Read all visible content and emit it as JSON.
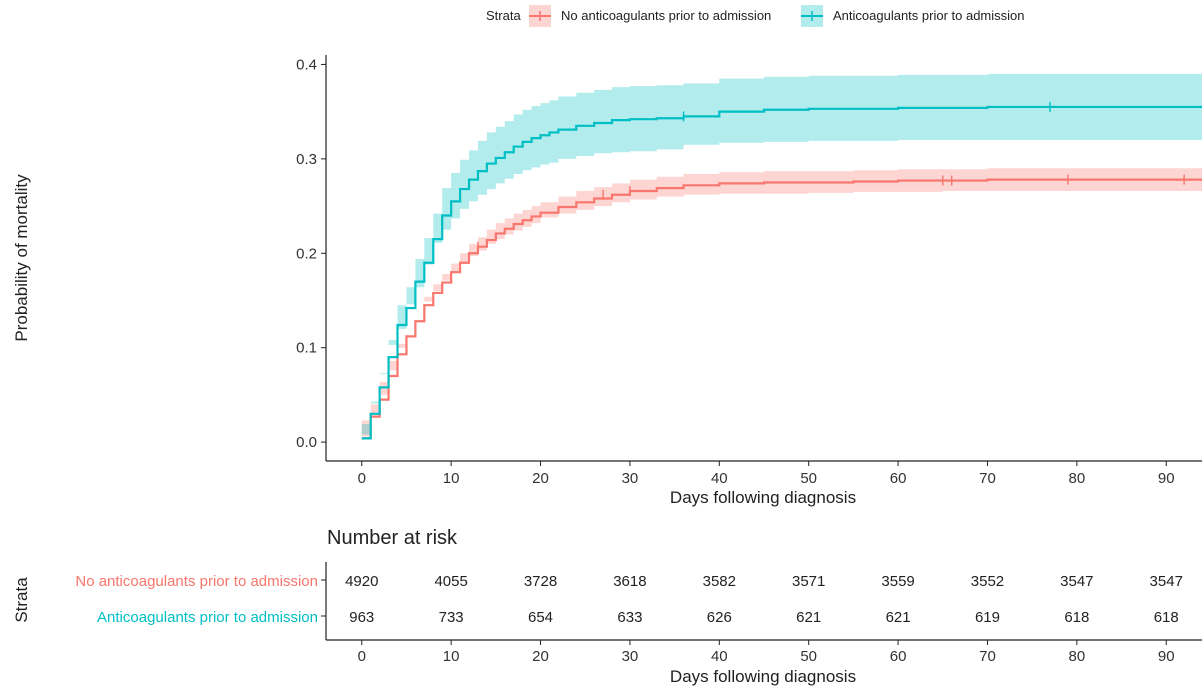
{
  "legend": {
    "title": "Strata",
    "items": [
      {
        "label": "No anticoagulants prior to admission",
        "color": "#F8766D"
      },
      {
        "label": "Anticoagulants prior to admission",
        "color": "#00BFC4"
      }
    ]
  },
  "chart_data": {
    "type": "line",
    "subtype": "step",
    "title": "",
    "xlabel": "Days following diagnosis",
    "ylabel": "Probability of mortality",
    "xlim": [
      -4,
      94
    ],
    "ylim": [
      -0.02,
      0.41
    ],
    "x_ticks": [
      0,
      10,
      20,
      30,
      40,
      50,
      60,
      70,
      80,
      90
    ],
    "y_ticks": [
      0.0,
      0.1,
      0.2,
      0.3,
      0.4
    ],
    "y_tick_labels": [
      "0.0",
      "0.1",
      "0.2",
      "0.3",
      "0.4"
    ],
    "grid": false,
    "legend_position": "top",
    "series": [
      {
        "name": "No anticoagulants prior to admission",
        "color": "#F8766D",
        "x": [
          0,
          1,
          2,
          3,
          4,
          5,
          6,
          7,
          8,
          9,
          10,
          11,
          12,
          13,
          14,
          15,
          16,
          17,
          18,
          19,
          20,
          22,
          24,
          26,
          28,
          30,
          33,
          36,
          40,
          45,
          50,
          55,
          60,
          65,
          70,
          80,
          94
        ],
        "y": [
          0.004,
          0.027,
          0.045,
          0.07,
          0.093,
          0.112,
          0.128,
          0.145,
          0.158,
          0.169,
          0.18,
          0.19,
          0.2,
          0.207,
          0.214,
          0.221,
          0.226,
          0.231,
          0.235,
          0.239,
          0.243,
          0.249,
          0.254,
          0.258,
          0.262,
          0.266,
          0.269,
          0.272,
          0.274,
          0.275,
          0.275,
          0.276,
          0.277,
          0.277,
          0.278,
          0.278,
          0.278
        ],
        "lower": [
          0.002,
          0.023,
          0.04,
          0.064,
          0.086,
          0.104,
          0.12,
          0.136,
          0.149,
          0.16,
          0.171,
          0.18,
          0.19,
          0.197,
          0.203,
          0.21,
          0.215,
          0.22,
          0.224,
          0.228,
          0.232,
          0.238,
          0.242,
          0.246,
          0.25,
          0.254,
          0.257,
          0.26,
          0.262,
          0.263,
          0.263,
          0.264,
          0.265,
          0.265,
          0.266,
          0.266,
          0.266
        ],
        "upper": [
          0.006,
          0.031,
          0.05,
          0.076,
          0.1,
          0.12,
          0.136,
          0.154,
          0.167,
          0.178,
          0.189,
          0.2,
          0.21,
          0.217,
          0.225,
          0.232,
          0.237,
          0.242,
          0.246,
          0.25,
          0.254,
          0.26,
          0.266,
          0.27,
          0.274,
          0.278,
          0.281,
          0.284,
          0.286,
          0.287,
          0.287,
          0.288,
          0.289,
          0.289,
          0.29,
          0.29,
          0.29
        ],
        "censor_x": [
          13,
          27,
          30,
          65,
          66,
          79,
          92
        ],
        "censor_y": [
          0.207,
          0.262,
          0.266,
          0.277,
          0.277,
          0.278,
          0.278
        ]
      },
      {
        "name": "Anticoagulants prior to admission",
        "color": "#00BFC4",
        "x": [
          0,
          1,
          2,
          3,
          4,
          5,
          6,
          7,
          8,
          9,
          10,
          11,
          12,
          13,
          14,
          15,
          16,
          17,
          18,
          19,
          20,
          21,
          22,
          24,
          26,
          28,
          30,
          33,
          36,
          40,
          45,
          50,
          60,
          70,
          80,
          94
        ],
        "y": [
          0.004,
          0.03,
          0.058,
          0.09,
          0.124,
          0.142,
          0.17,
          0.19,
          0.215,
          0.24,
          0.255,
          0.268,
          0.278,
          0.287,
          0.295,
          0.301,
          0.307,
          0.313,
          0.318,
          0.322,
          0.325,
          0.328,
          0.331,
          0.335,
          0.338,
          0.341,
          0.342,
          0.343,
          0.345,
          0.35,
          0.352,
          0.353,
          0.354,
          0.355,
          0.355,
          0.355
        ],
        "lower": [
          0.0,
          0.019,
          0.043,
          0.072,
          0.103,
          0.12,
          0.146,
          0.164,
          0.188,
          0.211,
          0.225,
          0.237,
          0.247,
          0.255,
          0.262,
          0.268,
          0.274,
          0.279,
          0.284,
          0.288,
          0.291,
          0.294,
          0.296,
          0.3,
          0.303,
          0.306,
          0.307,
          0.308,
          0.31,
          0.315,
          0.317,
          0.318,
          0.319,
          0.32,
          0.32,
          0.32
        ],
        "upper": [
          0.008,
          0.041,
          0.073,
          0.108,
          0.145,
          0.164,
          0.194,
          0.216,
          0.242,
          0.269,
          0.285,
          0.299,
          0.309,
          0.319,
          0.328,
          0.334,
          0.34,
          0.347,
          0.352,
          0.356,
          0.359,
          0.362,
          0.366,
          0.37,
          0.373,
          0.376,
          0.377,
          0.378,
          0.38,
          0.385,
          0.387,
          0.388,
          0.389,
          0.39,
          0.39,
          0.39
        ],
        "censor_x": [
          36,
          77
        ],
        "censor_y": [
          0.345,
          0.355
        ]
      }
    ]
  },
  "risk_table": {
    "title": "Number at risk",
    "ylabel": "Strata",
    "xlabel": "Days following diagnosis",
    "time_points": [
      0,
      10,
      20,
      30,
      40,
      50,
      60,
      70,
      80,
      90
    ],
    "rows": [
      {
        "label": "No anticoagulants prior to admission",
        "color": "#F8766D",
        "values": [
          4920,
          4055,
          3728,
          3618,
          3582,
          3571,
          3559,
          3552,
          3547,
          3547
        ]
      },
      {
        "label": "Anticoagulants prior to admission",
        "color": "#00BFC4",
        "values": [
          963,
          733,
          654,
          633,
          626,
          621,
          621,
          619,
          618,
          618
        ]
      }
    ]
  }
}
